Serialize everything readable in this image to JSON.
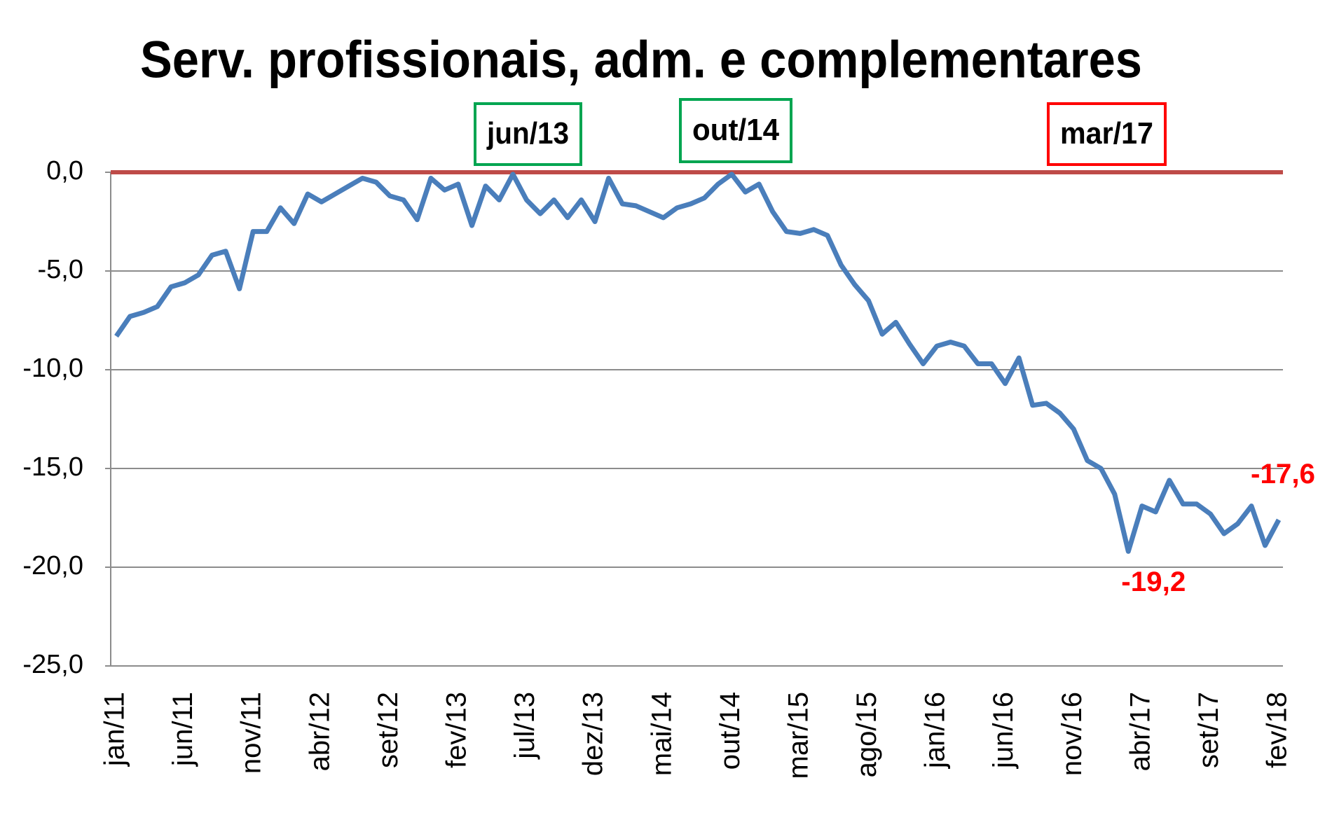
{
  "chart_data": {
    "type": "line",
    "title": "Serv. profissionais, adm. e complementares",
    "categories": [
      "jan/11",
      null,
      null,
      null,
      null,
      "jun/11",
      null,
      null,
      null,
      null,
      "nov/11",
      null,
      null,
      null,
      null,
      "abr/12",
      null,
      null,
      null,
      null,
      "set/12",
      null,
      null,
      null,
      null,
      "fev/13",
      null,
      null,
      null,
      null,
      "jul/13",
      null,
      null,
      null,
      null,
      "dez/13",
      null,
      null,
      null,
      null,
      "mai/14",
      null,
      null,
      null,
      null,
      "out/14",
      null,
      null,
      null,
      null,
      "mar/15",
      null,
      null,
      null,
      null,
      "ago/15",
      null,
      null,
      null,
      null,
      "jan/16",
      null,
      null,
      null,
      null,
      "jun/16",
      null,
      null,
      null,
      null,
      "nov/16",
      null,
      null,
      null,
      null,
      "abr/17",
      null,
      null,
      null,
      null,
      "set/17",
      null,
      null,
      null,
      null,
      "fev/18"
    ],
    "values": [
      -8.3,
      -7.3,
      -7.1,
      -6.8,
      -5.8,
      -5.6,
      -5.2,
      -4.2,
      -4.0,
      -5.9,
      -3.0,
      -3.0,
      -1.8,
      -2.6,
      -1.1,
      -1.5,
      -1.1,
      -0.7,
      -0.3,
      -0.5,
      -1.2,
      -1.4,
      -2.4,
      -0.3,
      -0.9,
      -0.6,
      -2.7,
      -0.7,
      -1.4,
      -0.1,
      -1.4,
      -2.1,
      -1.4,
      -2.3,
      -1.4,
      -2.5,
      -0.3,
      -1.6,
      -1.7,
      -2.0,
      -2.3,
      -1.8,
      -1.6,
      -1.3,
      -0.6,
      -0.1,
      -1.0,
      -0.6,
      -2.0,
      -3.0,
      -3.1,
      -2.9,
      -3.2,
      -4.7,
      -5.7,
      -6.5,
      -8.2,
      -7.6,
      -8.7,
      -9.7,
      -8.8,
      -8.6,
      -8.8,
      -9.7,
      -9.7,
      -10.7,
      -9.4,
      -11.8,
      -11.7,
      -12.2,
      -13.0,
      -14.6,
      -15.0,
      -16.3,
      -19.2,
      -16.9,
      -17.2,
      -15.6,
      -16.8,
      -16.8,
      -17.3,
      -18.3,
      -17.8,
      -16.9,
      -18.9,
      -17.6
    ],
    "value_labels": [
      null,
      null,
      null,
      null,
      null,
      null,
      null,
      null,
      null,
      null,
      null,
      null,
      null,
      null,
      null,
      null,
      null,
      null,
      null,
      null,
      null,
      null,
      null,
      null,
      null,
      null,
      null,
      null,
      null,
      null,
      null,
      null,
      null,
      null,
      null,
      null,
      null,
      null,
      null,
      null,
      null,
      null,
      null,
      null,
      null,
      null,
      null,
      null,
      null,
      null,
      null,
      null,
      null,
      null,
      null,
      null,
      null,
      null,
      null,
      null,
      null,
      null,
      null,
      null,
      null,
      null,
      null,
      null,
      null,
      null,
      null,
      null,
      null,
      null,
      "-19,2",
      null,
      null,
      null,
      null,
      null,
      null,
      null,
      null,
      null,
      null,
      "-17,6"
    ],
    "color": "#4a7ebb",
    "label_color": "#ff0000",
    "ylim": [
      -25,
      0
    ],
    "yticks": [
      {
        "value": -25,
        "label": "-25,0"
      },
      {
        "value": -20,
        "label": "-20,0"
      },
      {
        "value": -15,
        "label": "-15,0"
      },
      {
        "value": -10,
        "label": "-10,0"
      },
      {
        "value": -5,
        "label": "-5,0"
      },
      {
        "value": 0,
        "label": "0,0"
      }
    ],
    "grid": true,
    "reference_line": {
      "value": 0,
      "color": "#be4b48"
    },
    "annotations": [
      {
        "text": "jun/13",
        "color": "#00a550"
      },
      {
        "text": "out/14",
        "color": "#00a550"
      },
      {
        "text": "mar/17",
        "color": "#ff0000"
      }
    ]
  }
}
